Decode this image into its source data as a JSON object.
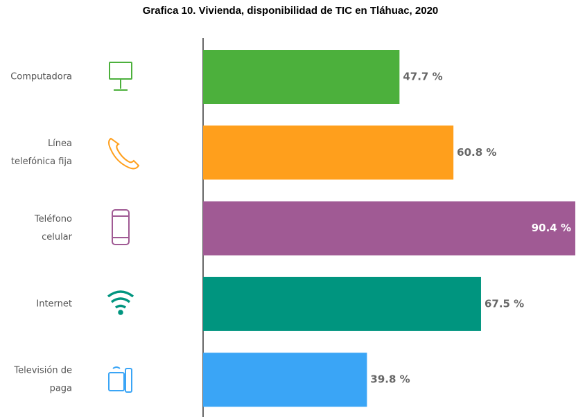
{
  "chart_data": {
    "type": "bar",
    "orientation": "horizontal",
    "title": "Grafica 10. Vivienda, disponibilidad de TIC en Tláhuac, 2020",
    "categories": [
      [
        "Computadora"
      ],
      [
        "Línea",
        "telefónica fija"
      ],
      [
        "Teléfono",
        "celular"
      ],
      [
        "Internet"
      ],
      [
        "Televisión de",
        "paga"
      ]
    ],
    "values": [
      47.7,
      60.8,
      90.4,
      67.5,
      39.8
    ],
    "value_labels": [
      "47.7 %",
      "60.8 %",
      "90.4 %",
      "67.5 %",
      "39.8 %"
    ],
    "colors": [
      "#4cb03c",
      "#ff9f1c",
      "#a05a94",
      "#00957f",
      "#3aa5f6"
    ]
  }
}
